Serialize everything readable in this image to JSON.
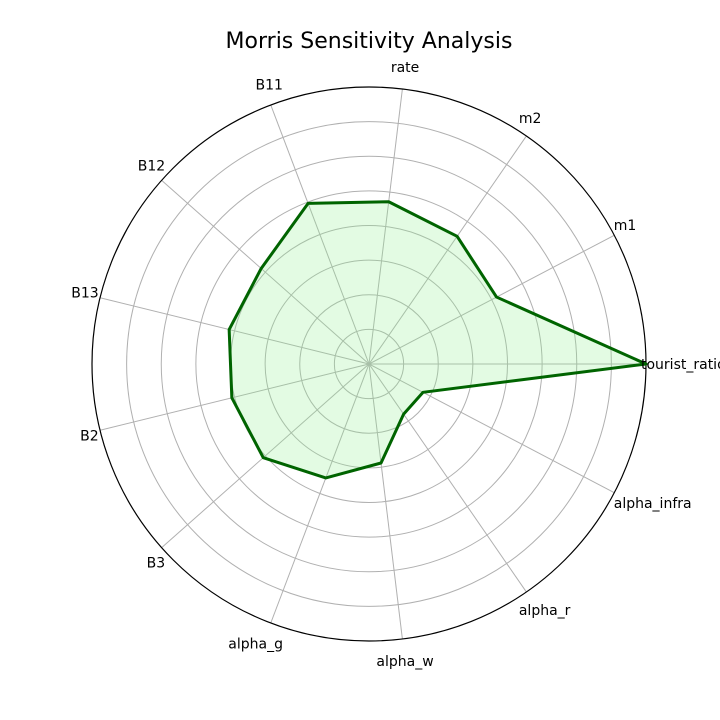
{
  "chart_data": {
    "type": "radar",
    "title": "Morris Sensitivity Analysis",
    "categories": [
      "tourist_ratio",
      "m1",
      "m2",
      "rate",
      "B11",
      "B12",
      "B13",
      "B2",
      "B3",
      "alpha_g",
      "alpha_w",
      "alpha_r",
      "alpha_infra"
    ],
    "series": [
      {
        "values": [
          1.0,
          0.52,
          0.56,
          0.59,
          0.62,
          0.52,
          0.52,
          0.51,
          0.51,
          0.44,
          0.36,
          0.22,
          0.22
        ]
      }
    ],
    "rlim": [
      0,
      1.0
    ],
    "grid": true,
    "colors": {
      "line": "#006400",
      "fill": "#90ee90",
      "grid": "#b0b0b0"
    }
  }
}
